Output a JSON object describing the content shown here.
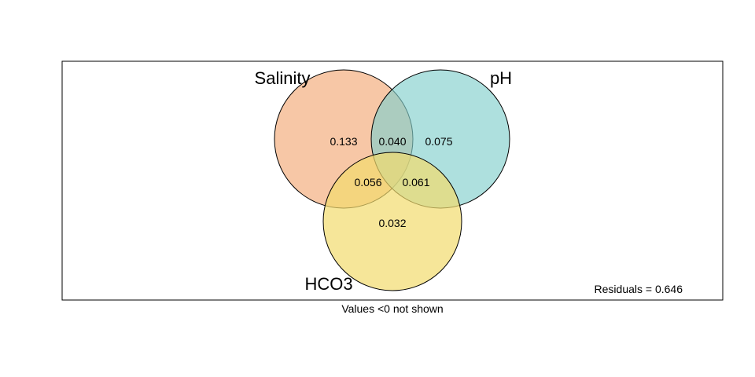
{
  "diagram": {
    "type": "venn",
    "sets": [
      {
        "name": "Salinity",
        "color": "#f4b183",
        "stroke": "#000000"
      },
      {
        "name": "pH",
        "color": "#82cfcc",
        "stroke": "#000000"
      },
      {
        "name": "HCO3",
        "color": "#f2dc6e",
        "stroke": "#000000"
      }
    ],
    "regions": {
      "salinity_only": "0.133",
      "salinity_ph": "0.040",
      "ph_only": "0.075",
      "salinity_hco3": "0.056",
      "ph_hco3": "0.061",
      "hco3_only": "0.032"
    },
    "residuals": "Residuals = 0.646",
    "note": "Values <0 not shown"
  }
}
